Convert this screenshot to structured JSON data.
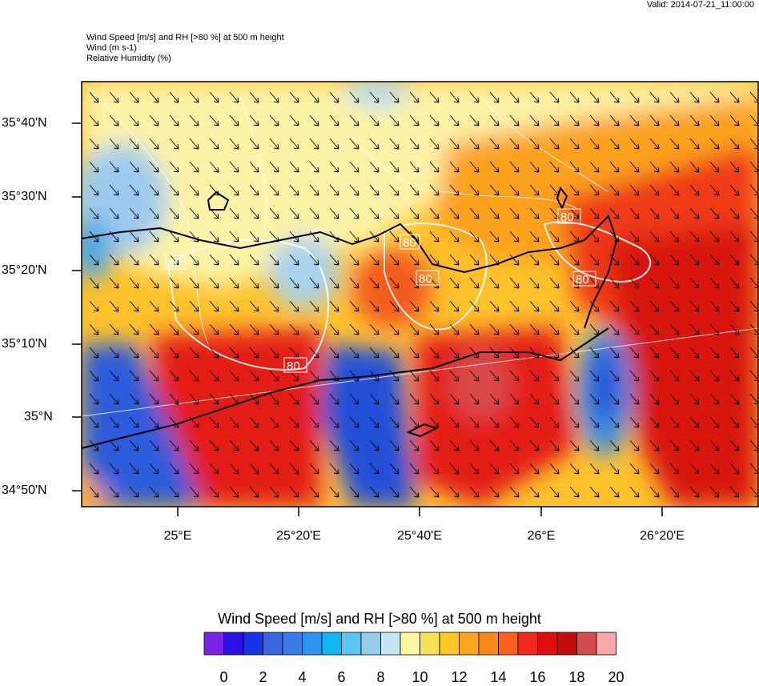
{
  "header": {
    "valid": "Valid: 2014-07-21_11:00:00",
    "line1": "Wind Speed [m/s] and RH [>80 %] at 500 m height",
    "line2": "Wind   (m s-1)",
    "line3": "Relative Humidity   (%)"
  },
  "map": {
    "lat_labels": [
      "35°40'N",
      "35°30'N",
      "35°20'N",
      "35°10'N",
      "35°N",
      "34°50'N"
    ],
    "lon_labels": [
      "25°E",
      "25°20'E",
      "25°40'E",
      "26°E",
      "26°20'E"
    ],
    "contour_label": "80",
    "field_colors": {
      "calm_blue": "#2a5bdc",
      "light_blue": "#9ccbee",
      "pale_yellow": "#fdf3a6",
      "orange": "#fca11f",
      "red": "#e41a17"
    }
  },
  "colorbar": {
    "title": "Wind Speed [m/s] and RH [>80 %] at 500 m height",
    "tick_labels": [
      "0",
      "2",
      "4",
      "6",
      "8",
      "10",
      "12",
      "14",
      "16",
      "18",
      "20"
    ],
    "colors": [
      "#7b22e8",
      "#2d10e6",
      "#1633ea",
      "#3766e3",
      "#3b7be8",
      "#2a95ee",
      "#10b6ef",
      "#5ac5ee",
      "#94ccea",
      "#c4e6f2",
      "#fdf7a0",
      "#f9e157",
      "#fcc624",
      "#fca61d",
      "#fb8718",
      "#f9601b",
      "#f0291b",
      "#e00d0e",
      "#c30c0b",
      "#d64b4b",
      "#f6a8a5"
    ]
  }
}
